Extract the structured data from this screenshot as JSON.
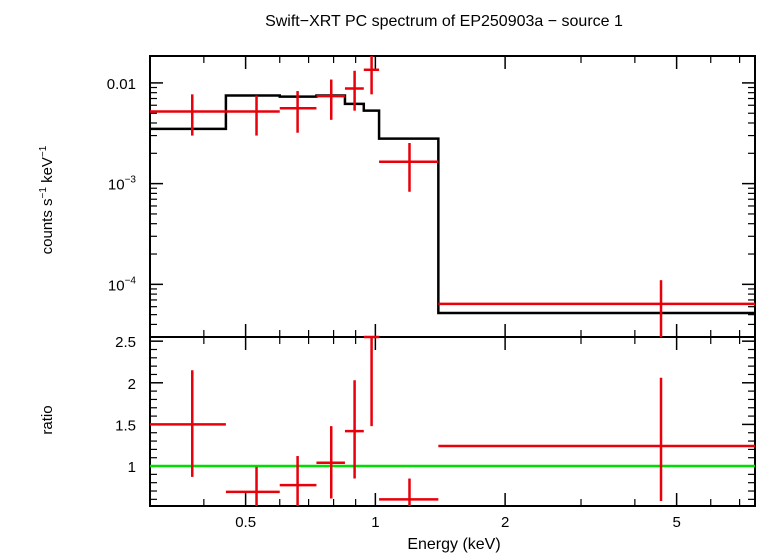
{
  "chart_data": [
    {
      "panel": "spectrum",
      "type": "scatter",
      "title": "Swift−XRT PC spectrum of EP250903a − source 1",
      "ylabel_parts": [
        "counts s",
        "−1",
        " keV",
        "−1"
      ],
      "yscale": "log",
      "xscale": "log",
      "xlim": [
        0.3,
        7.6
      ],
      "ylim": [
        3e-05,
        0.0185
      ],
      "yticks": [
        {
          "value": 0.01,
          "label": "0.01",
          "mantissa": "",
          "exponent": ""
        },
        {
          "value": 0.001,
          "label": "",
          "mantissa": "10",
          "exponent": "−3"
        },
        {
          "value": 0.0001,
          "label": "",
          "mantissa": "10",
          "exponent": "−4"
        }
      ],
      "colors": {
        "data": "#e8000b",
        "model": "#000000"
      },
      "data": [
        {
          "x": 0.376,
          "xerr": [
            0.076,
            0.074
          ],
          "y": 0.0052,
          "yerr": [
            0.0022,
            0.0025
          ]
        },
        {
          "x": 0.53,
          "xerr": [
            0.08,
            0.07
          ],
          "y": 0.0052,
          "yerr": [
            0.0022,
            0.0023
          ]
        },
        {
          "x": 0.66,
          "xerr": [
            0.06,
            0.07
          ],
          "y": 0.0056,
          "yerr": [
            0.0024,
            0.0027
          ]
        },
        {
          "x": 0.79,
          "xerr": [
            0.06,
            0.06
          ],
          "y": 0.0074,
          "yerr": [
            0.0031,
            0.0034
          ]
        },
        {
          "x": 0.895,
          "xerr": [
            0.045,
            0.045
          ],
          "y": 0.0088,
          "yerr": [
            0.0035,
            0.0044
          ]
        },
        {
          "x": 0.98,
          "xerr": [
            0.04,
            0.04
          ],
          "y": 0.0135,
          "yerr": [
            0.0058,
            0.0065
          ]
        },
        {
          "x": 1.2,
          "xerr": [
            0.18,
            0.2
          ],
          "y": 0.00165,
          "yerr": [
            0.00082,
            0.00088
          ]
        },
        {
          "x": 4.6,
          "xerr": [
            3.2,
            3.0
          ],
          "y": 6.4e-05,
          "yerr": [
            3.4e-05,
            4.6e-05
          ]
        }
      ],
      "model_steps": [
        {
          "x0": 0.3,
          "x1": 0.45,
          "y": 0.0035
        },
        {
          "x0": 0.45,
          "x1": 0.6,
          "y": 0.0075
        },
        {
          "x0": 0.6,
          "x1": 0.73,
          "y": 0.0073
        },
        {
          "x0": 0.73,
          "x1": 0.85,
          "y": 0.0075
        },
        {
          "x0": 0.85,
          "x1": 0.94,
          "y": 0.0062
        },
        {
          "x0": 0.94,
          "x1": 1.02,
          "y": 0.0053
        },
        {
          "x0": 1.02,
          "x1": 1.4,
          "y": 0.0028
        },
        {
          "x0": 1.4,
          "x1": 7.6,
          "y": 5.2e-05
        }
      ]
    },
    {
      "panel": "ratio",
      "type": "scatter",
      "ylabel": "ratio",
      "xlabel": "Energy (keV)",
      "xscale": "log",
      "xlim": [
        0.3,
        7.6
      ],
      "ylim": [
        0.52,
        2.55
      ],
      "yticks": [
        1,
        1.5,
        2,
        2.5
      ],
      "ytick_labels": [
        "1",
        "1.5",
        "2",
        "2.5"
      ],
      "xticks": [
        0.5,
        1,
        2,
        5
      ],
      "xtick_labels": [
        "0.5",
        "1",
        "2",
        "5"
      ],
      "reference_line": 1,
      "colors": {
        "data": "#e8000b",
        "reference": "#00dd00"
      },
      "data": [
        {
          "x": 0.376,
          "xerr": [
            0.076,
            0.074
          ],
          "y": 1.5,
          "yerr": [
            0.63,
            0.65
          ]
        },
        {
          "x": 0.53,
          "xerr": [
            0.08,
            0.07
          ],
          "y": 0.69,
          "yerr": [
            0.3,
            0.3
          ]
        },
        {
          "x": 0.66,
          "xerr": [
            0.06,
            0.07
          ],
          "y": 0.77,
          "yerr": [
            0.32,
            0.35
          ]
        },
        {
          "x": 0.79,
          "xerr": [
            0.06,
            0.06
          ],
          "y": 1.04,
          "yerr": [
            0.43,
            0.44
          ]
        },
        {
          "x": 0.895,
          "xerr": [
            0.045,
            0.045
          ],
          "y": 1.42,
          "yerr": [
            0.57,
            0.61
          ]
        },
        {
          "x": 0.98,
          "xerr": [
            0.04,
            0.04
          ],
          "y": 2.55,
          "yerr": [
            1.07,
            0.3
          ]
        },
        {
          "x": 1.2,
          "xerr": [
            0.18,
            0.2
          ],
          "y": 0.6,
          "yerr": [
            0.3,
            0.25
          ]
        },
        {
          "x": 4.6,
          "xerr": [
            3.2,
            3.0
          ],
          "y": 1.24,
          "yerr": [
            0.66,
            0.82
          ]
        }
      ]
    }
  ]
}
